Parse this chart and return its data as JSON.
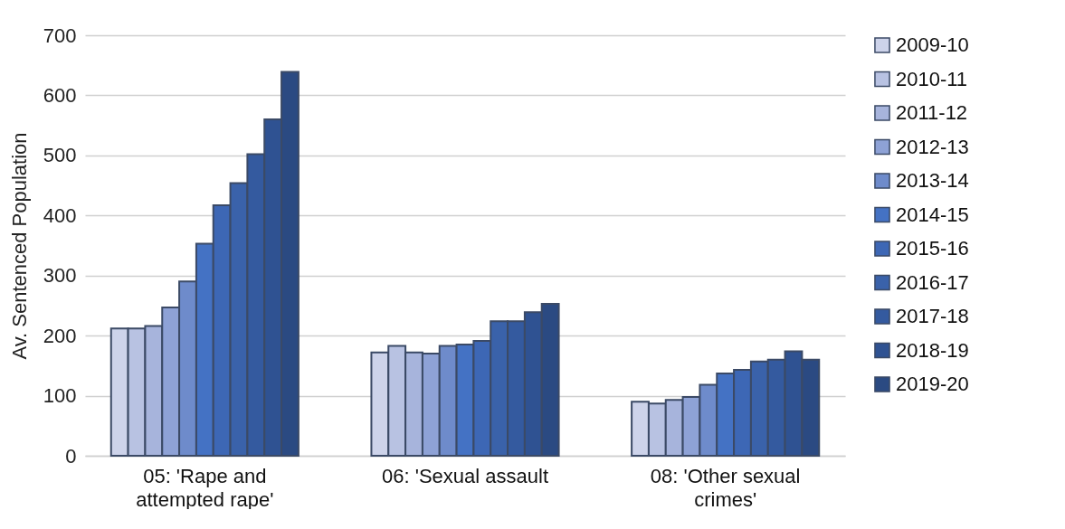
{
  "chart_data": {
    "type": "bar",
    "ylabel": "Av. Sentenced Population",
    "categories": [
      "05: 'Rape and attempted rape'",
      "06: 'Sexual assault",
      "08: 'Other sexual crimes'"
    ],
    "series": [
      {
        "name": "2009-10",
        "color": "#cdd3ea",
        "values": [
          212,
          172,
          90
        ]
      },
      {
        "name": "2010-11",
        "color": "#b8c2e2",
        "values": [
          212,
          183,
          87
        ]
      },
      {
        "name": "2011-12",
        "color": "#a7b4dc",
        "values": [
          216,
          172,
          93
        ]
      },
      {
        "name": "2012-13",
        "color": "#8ea2d6",
        "values": [
          247,
          170,
          98
        ]
      },
      {
        "name": "2013-14",
        "color": "#6e8bcb",
        "values": [
          290,
          183,
          118
        ]
      },
      {
        "name": "2014-15",
        "color": "#4472c4",
        "values": [
          353,
          185,
          137
        ]
      },
      {
        "name": "2015-16",
        "color": "#3d67b5",
        "values": [
          417,
          191,
          143
        ]
      },
      {
        "name": "2016-17",
        "color": "#3a62aa",
        "values": [
          454,
          224,
          157
        ]
      },
      {
        "name": "2017-18",
        "color": "#345a9f",
        "values": [
          502,
          224,
          160
        ]
      },
      {
        "name": "2018-19",
        "color": "#2f5292",
        "values": [
          560,
          239,
          174
        ]
      },
      {
        "name": "2019-20",
        "color": "#2b4a82",
        "values": [
          639,
          253,
          160
        ]
      }
    ],
    "ylim": [
      0,
      700
    ],
    "yticks": [
      0,
      100,
      200,
      300,
      400,
      500,
      600,
      700
    ],
    "grid": "y",
    "legend": "right"
  }
}
